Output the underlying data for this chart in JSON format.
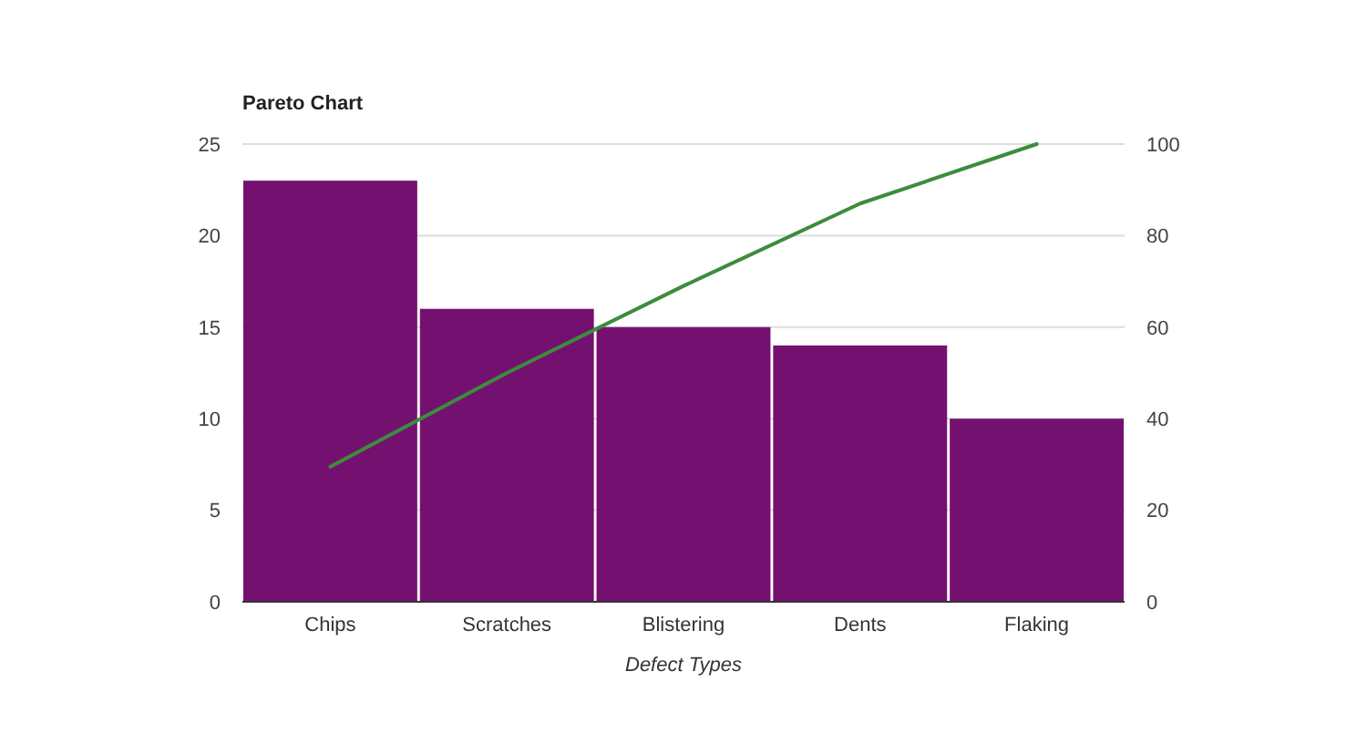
{
  "chart_data": {
    "type": "bar",
    "title": "Pareto Chart",
    "xlabel": "Defect Types",
    "categories": [
      "Chips",
      "Scratches",
      "Blistering",
      "Dents",
      "Flaking"
    ],
    "series": [
      {
        "color": "#741170",
        "values": [
          23,
          16,
          15,
          14,
          10
        ]
      },
      {
        "type": "line",
        "axis": "y2",
        "color": "#3c8c3c",
        "values": [
          29.5,
          50,
          69,
          87,
          100
        ]
      }
    ],
    "ylim": [
      0,
      25
    ],
    "yticks": [
      0,
      5,
      10,
      15,
      20,
      25
    ],
    "y2lim": [
      0,
      100
    ],
    "y2ticks": [
      0,
      20,
      40,
      60,
      80,
      100
    ],
    "grid": "y"
  }
}
